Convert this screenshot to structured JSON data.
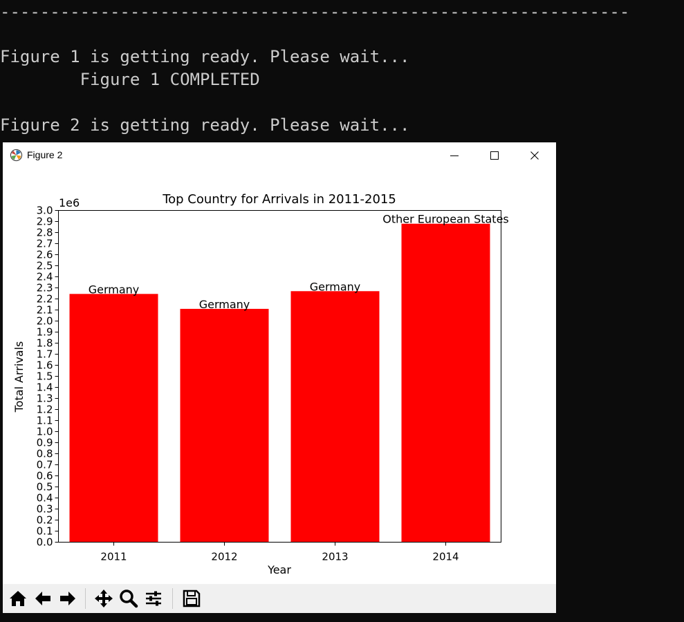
{
  "console": {
    "lines": [
      "---------------------------------------------------------------",
      "Figure 1 is getting ready. Please wait...",
      "        Figure 1 COMPLETED",
      "Figure 2 is getting ready. Please wait..."
    ]
  },
  "window": {
    "title": "Figure 2",
    "icons": {
      "app": "matplotlib-logo-icon",
      "minimize": "minimize-icon",
      "maximize": "maximize-icon",
      "close": "close-icon"
    }
  },
  "chart_data": {
    "type": "bar",
    "title": "Top Country for Arrivals in 2011-2015",
    "xlabel": "Year",
    "ylabel": "Total Arrivals",
    "offset_text": "1e6",
    "categories": [
      "2011",
      "2012",
      "2013",
      "2014"
    ],
    "values": [
      2245000,
      2110000,
      2270000,
      2880000
    ],
    "bar_labels": [
      "Germany",
      "Germany",
      "Germany",
      "Other European States"
    ],
    "ylim": [
      0,
      3000000
    ],
    "yticks": [
      "0.0",
      "0.1",
      "0.2",
      "0.3",
      "0.4",
      "0.5",
      "0.6",
      "0.7",
      "0.8",
      "0.9",
      "1.0",
      "1.1",
      "1.2",
      "1.3",
      "1.4",
      "1.5",
      "1.6",
      "1.7",
      "1.8",
      "1.9",
      "2.0",
      "2.1",
      "2.2",
      "2.3",
      "2.4",
      "2.5",
      "2.6",
      "2.7",
      "2.8",
      "2.9",
      "3.0"
    ],
    "bar_color": "#ff0000",
    "grid": false
  },
  "toolbar": {
    "buttons": [
      "home-icon",
      "back-icon",
      "forward-icon",
      "pan-icon",
      "zoom-icon",
      "configure-subplots-icon",
      "save-icon"
    ]
  }
}
